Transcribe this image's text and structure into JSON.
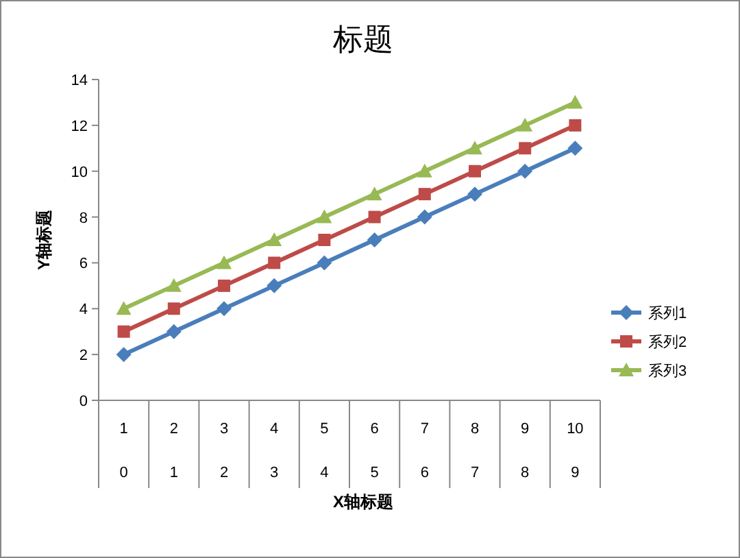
{
  "chart_data": {
    "type": "line",
    "title": "标题",
    "xlabel": "X轴标题",
    "ylabel": "Y轴标题",
    "categories": [
      "1",
      "2",
      "3",
      "4",
      "5",
      "6",
      "7",
      "8",
      "9",
      "10"
    ],
    "annotations": [
      "0",
      "1",
      "2",
      "3",
      "4",
      "5",
      "6",
      "7",
      "8",
      "9"
    ],
    "series": [
      {
        "name": "系列1",
        "color": "#4a7ebb",
        "marker": "diamond",
        "values": [
          2,
          3,
          4,
          5,
          6,
          7,
          8,
          9,
          10,
          11
        ]
      },
      {
        "name": "系列2",
        "color": "#be4b48",
        "marker": "square",
        "values": [
          3,
          4,
          5,
          6,
          7,
          8,
          9,
          10,
          11,
          12
        ]
      },
      {
        "name": "系列3",
        "color": "#98b954",
        "marker": "triangle",
        "values": [
          4,
          5,
          6,
          7,
          8,
          9,
          10,
          11,
          12,
          13
        ]
      }
    ],
    "ylim": [
      0,
      14
    ],
    "yticks": [
      0,
      2,
      4,
      6,
      8,
      10,
      12,
      14
    ],
    "grid": false,
    "legend": "right",
    "line_style": "solid"
  }
}
